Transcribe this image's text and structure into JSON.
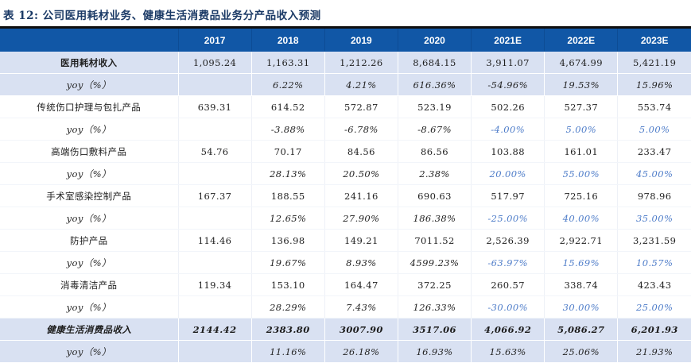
{
  "title": "表 12: 公司医用耗材业务、健康生活消费品业务分产品收入预测",
  "colors": {
    "header_bg": "#1157A6",
    "header_text": "#FFFFFF",
    "highlight_row_bg": "#D9E1F2",
    "forecast_text_blue": "#4F7DC9",
    "title_color": "#1B3A66",
    "top_rule": "#0F0F0F"
  },
  "table": {
    "columns": [
      "",
      "2017",
      "2018",
      "2019",
      "2020",
      "2021E",
      "2022E",
      "2023E"
    ],
    "rows": [
      {
        "type": "section",
        "label": "医用耗材收入",
        "values": [
          "1,095.24",
          "1,163.31",
          "1,212.26",
          "8,684.15",
          "3,911.07",
          "4,674.99",
          "5,421.19"
        ]
      },
      {
        "type": "section-yoy",
        "label": "yoy（%）",
        "values": [
          "",
          "6.22%",
          "4.21%",
          "616.36%",
          "-54.96%",
          "19.53%",
          "15.96%"
        ]
      },
      {
        "type": "product",
        "label": "传统伤口护理与包扎产品",
        "values": [
          "639.31",
          "614.52",
          "572.87",
          "523.19",
          "502.26",
          "527.37",
          "553.74"
        ]
      },
      {
        "type": "product-yoy",
        "label": "yoy（%）",
        "values": [
          "",
          "-3.88%",
          "-6.78%",
          "-8.67%",
          "-4.00%",
          "5.00%",
          "5.00%"
        ]
      },
      {
        "type": "product",
        "label": "高端伤口敷料产品",
        "values": [
          "54.76",
          "70.17",
          "84.56",
          "86.56",
          "103.88",
          "161.01",
          "233.47"
        ]
      },
      {
        "type": "product-yoy",
        "label": "yoy（%）",
        "values": [
          "",
          "28.13%",
          "20.50%",
          "2.38%",
          "20.00%",
          "55.00%",
          "45.00%"
        ]
      },
      {
        "type": "product",
        "label": "手术室感染控制产品",
        "values": [
          "167.37",
          "188.55",
          "241.16",
          "690.63",
          "517.97",
          "725.16",
          "978.96"
        ]
      },
      {
        "type": "product-yoy",
        "label": "yoy（%）",
        "values": [
          "",
          "12.65%",
          "27.90%",
          "186.38%",
          "-25.00%",
          "40.00%",
          "35.00%"
        ]
      },
      {
        "type": "product",
        "label": "防护产品",
        "values": [
          "114.46",
          "136.98",
          "149.21",
          "7011.52",
          "2,526.39",
          "2,922.71",
          "3,231.59"
        ]
      },
      {
        "type": "product-yoy",
        "label": "yoy（%）",
        "values": [
          "",
          "19.67%",
          "8.93%",
          "4599.23%",
          "-63.97%",
          "15.69%",
          "10.57%"
        ]
      },
      {
        "type": "product",
        "label": "消毒清洁产品",
        "values": [
          "119.34",
          "153.10",
          "164.47",
          "372.25",
          "260.57",
          "338.74",
          "423.43"
        ]
      },
      {
        "type": "product-yoy",
        "label": "yoy（%）",
        "values": [
          "",
          "28.29%",
          "7.43%",
          "126.33%",
          "-30.00%",
          "30.00%",
          "25.00%"
        ]
      },
      {
        "type": "section2",
        "label": "健康生活消费品收入",
        "values": [
          "2144.42",
          "2383.80",
          "3007.90",
          "3517.06",
          "4,066.92",
          "5,086.27",
          "6,201.93"
        ]
      },
      {
        "type": "section-yoy",
        "label": "yoy（%）",
        "values": [
          "",
          "11.16%",
          "26.18%",
          "16.93%",
          "15.63%",
          "25.06%",
          "21.93%"
        ]
      }
    ]
  }
}
